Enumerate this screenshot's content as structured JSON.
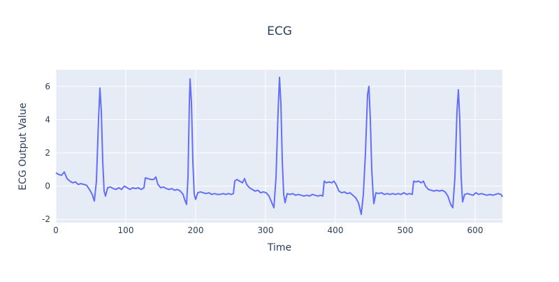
{
  "chart_data": {
    "type": "line",
    "title": "ECG",
    "x_label": "Time",
    "y_label": "ECG Output Value",
    "x": [
      0,
      4,
      8,
      12,
      16,
      20,
      24,
      28,
      32,
      36,
      40,
      44,
      48,
      52,
      55,
      58,
      61,
      63,
      65,
      67,
      69,
      71,
      74,
      78,
      82,
      86,
      90,
      94,
      98,
      102,
      106,
      110,
      114,
      118,
      122,
      126,
      128,
      132,
      136,
      140,
      143,
      146,
      150,
      154,
      158,
      162,
      166,
      170,
      174,
      178,
      182,
      185,
      187,
      189,
      191,
      192,
      194,
      196,
      198,
      200,
      203,
      207,
      211,
      215,
      219,
      223,
      227,
      231,
      235,
      239,
      243,
      247,
      251,
      254,
      256,
      259,
      263,
      267,
      270,
      273,
      277,
      281,
      285,
      289,
      293,
      297,
      301,
      305,
      309,
      312,
      315,
      318,
      320,
      322,
      324,
      326,
      328,
      331,
      335,
      339,
      343,
      347,
      351,
      355,
      359,
      363,
      367,
      371,
      375,
      379,
      382,
      384,
      387,
      391,
      395,
      398,
      401,
      405,
      409,
      413,
      417,
      421,
      425,
      429,
      433,
      437,
      440,
      443,
      446,
      448,
      450,
      452,
      454,
      455,
      458,
      462,
      466,
      470,
      474,
      478,
      482,
      486,
      490,
      494,
      498,
      502,
      506,
      510,
      512,
      515,
      519,
      523,
      526,
      529,
      533,
      537,
      541,
      545,
      549,
      553,
      557,
      561,
      565,
      568,
      571,
      574,
      576,
      578,
      580,
      582,
      585,
      589,
      593,
      597,
      601,
      605,
      609,
      613,
      617,
      621,
      625,
      629,
      633,
      637,
      639
    ],
    "series": [
      {
        "name": "ECG",
        "color": "#636efa",
        "values": [
          0.8,
          0.7,
          0.65,
          0.85,
          0.45,
          0.3,
          0.2,
          0.25,
          0.1,
          0.15,
          0.1,
          0.05,
          -0.2,
          -0.5,
          -0.9,
          0.3,
          4.0,
          5.9,
          4.5,
          1.5,
          -0.3,
          -0.6,
          -0.1,
          -0.05,
          -0.15,
          -0.2,
          -0.1,
          -0.2,
          0.0,
          -0.1,
          -0.2,
          -0.1,
          -0.15,
          -0.1,
          -0.2,
          -0.1,
          0.5,
          0.45,
          0.4,
          0.4,
          0.55,
          0.1,
          -0.1,
          -0.05,
          -0.15,
          -0.2,
          -0.15,
          -0.25,
          -0.2,
          -0.3,
          -0.5,
          -0.9,
          -1.1,
          0.5,
          5.0,
          6.45,
          5.0,
          1.5,
          -0.5,
          -0.8,
          -0.4,
          -0.35,
          -0.4,
          -0.45,
          -0.4,
          -0.5,
          -0.45,
          -0.5,
          -0.5,
          -0.45,
          -0.5,
          -0.45,
          -0.5,
          -0.45,
          0.3,
          0.4,
          0.3,
          0.2,
          0.45,
          0.1,
          -0.1,
          -0.2,
          -0.3,
          -0.25,
          -0.4,
          -0.35,
          -0.4,
          -0.6,
          -1.0,
          -1.3,
          0.5,
          4.5,
          6.55,
          5.0,
          1.5,
          -0.5,
          -1.0,
          -0.45,
          -0.5,
          -0.45,
          -0.55,
          -0.5,
          -0.55,
          -0.6,
          -0.55,
          -0.6,
          -0.5,
          -0.55,
          -0.6,
          -0.55,
          -0.6,
          0.3,
          0.2,
          0.25,
          0.2,
          0.3,
          0.1,
          -0.3,
          -0.4,
          -0.35,
          -0.45,
          -0.4,
          -0.55,
          -0.7,
          -1.0,
          -1.7,
          -0.5,
          2.0,
          5.5,
          6.0,
          4.0,
          1.0,
          -0.5,
          -1.05,
          -0.4,
          -0.45,
          -0.4,
          -0.5,
          -0.45,
          -0.5,
          -0.45,
          -0.5,
          -0.45,
          -0.5,
          -0.4,
          -0.5,
          -0.45,
          -0.5,
          0.3,
          0.25,
          0.3,
          0.2,
          0.3,
          0.0,
          -0.2,
          -0.25,
          -0.3,
          -0.25,
          -0.3,
          -0.25,
          -0.35,
          -0.6,
          -1.1,
          -1.3,
          0.5,
          4.5,
          5.8,
          4.0,
          0.5,
          -0.95,
          -0.5,
          -0.45,
          -0.5,
          -0.55,
          -0.4,
          -0.5,
          -0.45,
          -0.5,
          -0.55,
          -0.5,
          -0.55,
          -0.5,
          -0.45,
          -0.5,
          -0.65
        ]
      }
    ],
    "xlim": [
      0,
      639
    ],
    "ylim": [
      -2.2,
      7.0
    ],
    "xticks": [
      0,
      100,
      200,
      300,
      400,
      500,
      600
    ],
    "yticks": [
      -2,
      0,
      2,
      4,
      6
    ],
    "grid": true
  }
}
